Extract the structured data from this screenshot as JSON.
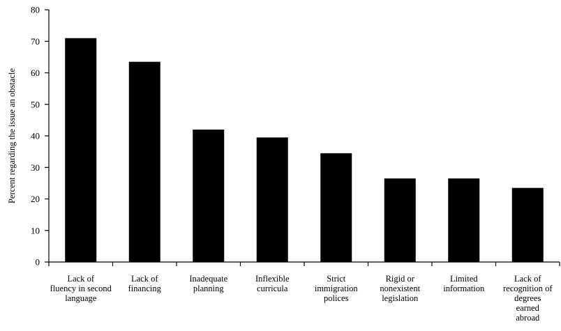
{
  "chart_data": {
    "type": "bar",
    "title": "",
    "xlabel": "",
    "ylabel": "Percent regarding the issue an obstacle",
    "ylim": [
      0,
      80
    ],
    "yticks": [
      0,
      10,
      20,
      30,
      40,
      50,
      60,
      70,
      80
    ],
    "grid": false,
    "legend": "none",
    "bar_color": "#000000",
    "categories": [
      [
        "Lack of",
        "fluency in second",
        "language"
      ],
      [
        "Lack of",
        "financing"
      ],
      [
        "Inadequate",
        "planning"
      ],
      [
        "Inflexible",
        "curricula"
      ],
      [
        "Strict",
        "immigration",
        "polices"
      ],
      [
        "Rigid or",
        "nonexistent",
        "legislation"
      ],
      [
        "Limited",
        "information"
      ],
      [
        "Lack of",
        "recognition of",
        "degrees",
        "earned",
        "abroad"
      ]
    ],
    "values": [
      71,
      63.5,
      42,
      39.5,
      34.5,
      26.5,
      26.5,
      23.5
    ]
  }
}
